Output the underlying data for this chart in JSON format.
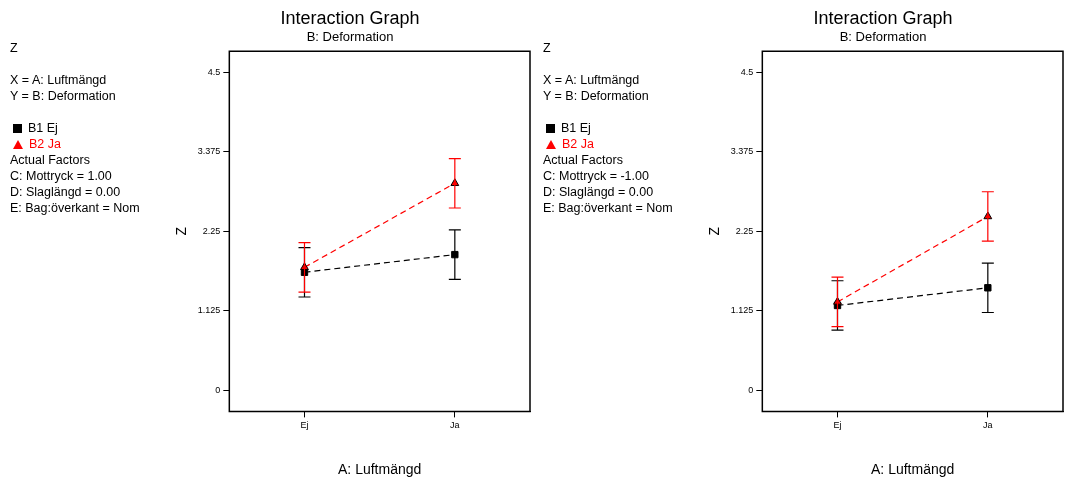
{
  "chart_data": [
    {
      "type": "line",
      "title": "Interaction Graph",
      "subtitle": "B: Deformation",
      "xlabel": "A: Luftmängd",
      "ylabel": "Z",
      "categories": [
        "Ej",
        "Ja"
      ],
      "series": [
        {
          "name": "B1 Ej",
          "color": "#000000",
          "marker": "square",
          "values": [
            1.67,
            1.92
          ],
          "errors": [
            0.35,
            0.35
          ]
        },
        {
          "name": "B2 Ja",
          "color": "#ff0000",
          "marker": "triangle",
          "values": [
            1.74,
            2.93
          ],
          "errors": [
            0.35,
            0.35
          ]
        }
      ],
      "ylim": [
        -0.3,
        4.8
      ],
      "yticks": [
        0,
        1.125,
        2.25,
        3.375,
        4.5
      ],
      "grid": false,
      "legend": "left",
      "line_style": "dashed",
      "annotations": [
        "Z",
        "X = A: Luftmängd",
        "Y = B: Deformation",
        "Actual Factors",
        "C: Mottryck = 1.00",
        "D: Slaglängd = 0.00",
        "E: Bag:överkant = Nom"
      ]
    },
    {
      "type": "line",
      "title": "Interaction Graph",
      "subtitle": "B: Deformation",
      "xlabel": "A: Luftmängd",
      "ylabel": "Z",
      "categories": [
        "Ej",
        "Ja"
      ],
      "series": [
        {
          "name": "B1 Ej",
          "color": "#000000",
          "marker": "square",
          "values": [
            1.2,
            1.45
          ],
          "errors": [
            0.35,
            0.35
          ]
        },
        {
          "name": "B2 Ja",
          "color": "#ff0000",
          "marker": "triangle",
          "values": [
            1.25,
            2.46
          ],
          "errors": [
            0.35,
            0.35
          ]
        }
      ],
      "ylim": [
        -0.3,
        4.8
      ],
      "yticks": [
        0,
        1.125,
        2.25,
        3.375,
        4.5
      ],
      "grid": false,
      "legend": "left",
      "line_style": "dashed",
      "annotations": [
        "Z",
        "X = A: Luftmängd",
        "Y = B: Deformation",
        "Actual Factors",
        "C: Mottryck = -1.00",
        "D: Slaglängd = 0.00",
        "E: Bag:överkant = Nom"
      ]
    }
  ]
}
